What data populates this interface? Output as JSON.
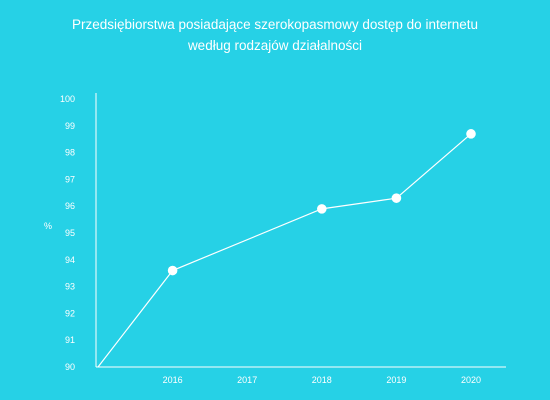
{
  "chart_data": {
    "type": "line",
    "title_line1": "Przedsiębiorstwa posiadające szerokopasmowy dostęp do internetu",
    "title_line2": "według rodzajów działalności",
    "ylabel": "%",
    "xlabel": "",
    "x_ticks": [
      "2016",
      "2017",
      "2018",
      "2019",
      "2020"
    ],
    "y_ticks": [
      90,
      91,
      92,
      93,
      94,
      95,
      96,
      97,
      98,
      99,
      100
    ],
    "ylim": [
      90,
      100
    ],
    "series": [
      {
        "x": [
          2015,
          2016,
          2018,
          2019,
          2020
        ],
        "y": [
          90,
          93.6,
          95.9,
          96.3,
          98.7
        ],
        "markers": [
          false,
          true,
          true,
          true,
          true
        ]
      }
    ],
    "grid": false,
    "colors": {
      "background": "#26d1e6",
      "line": "#ffffff",
      "text": "#ffffff"
    }
  }
}
